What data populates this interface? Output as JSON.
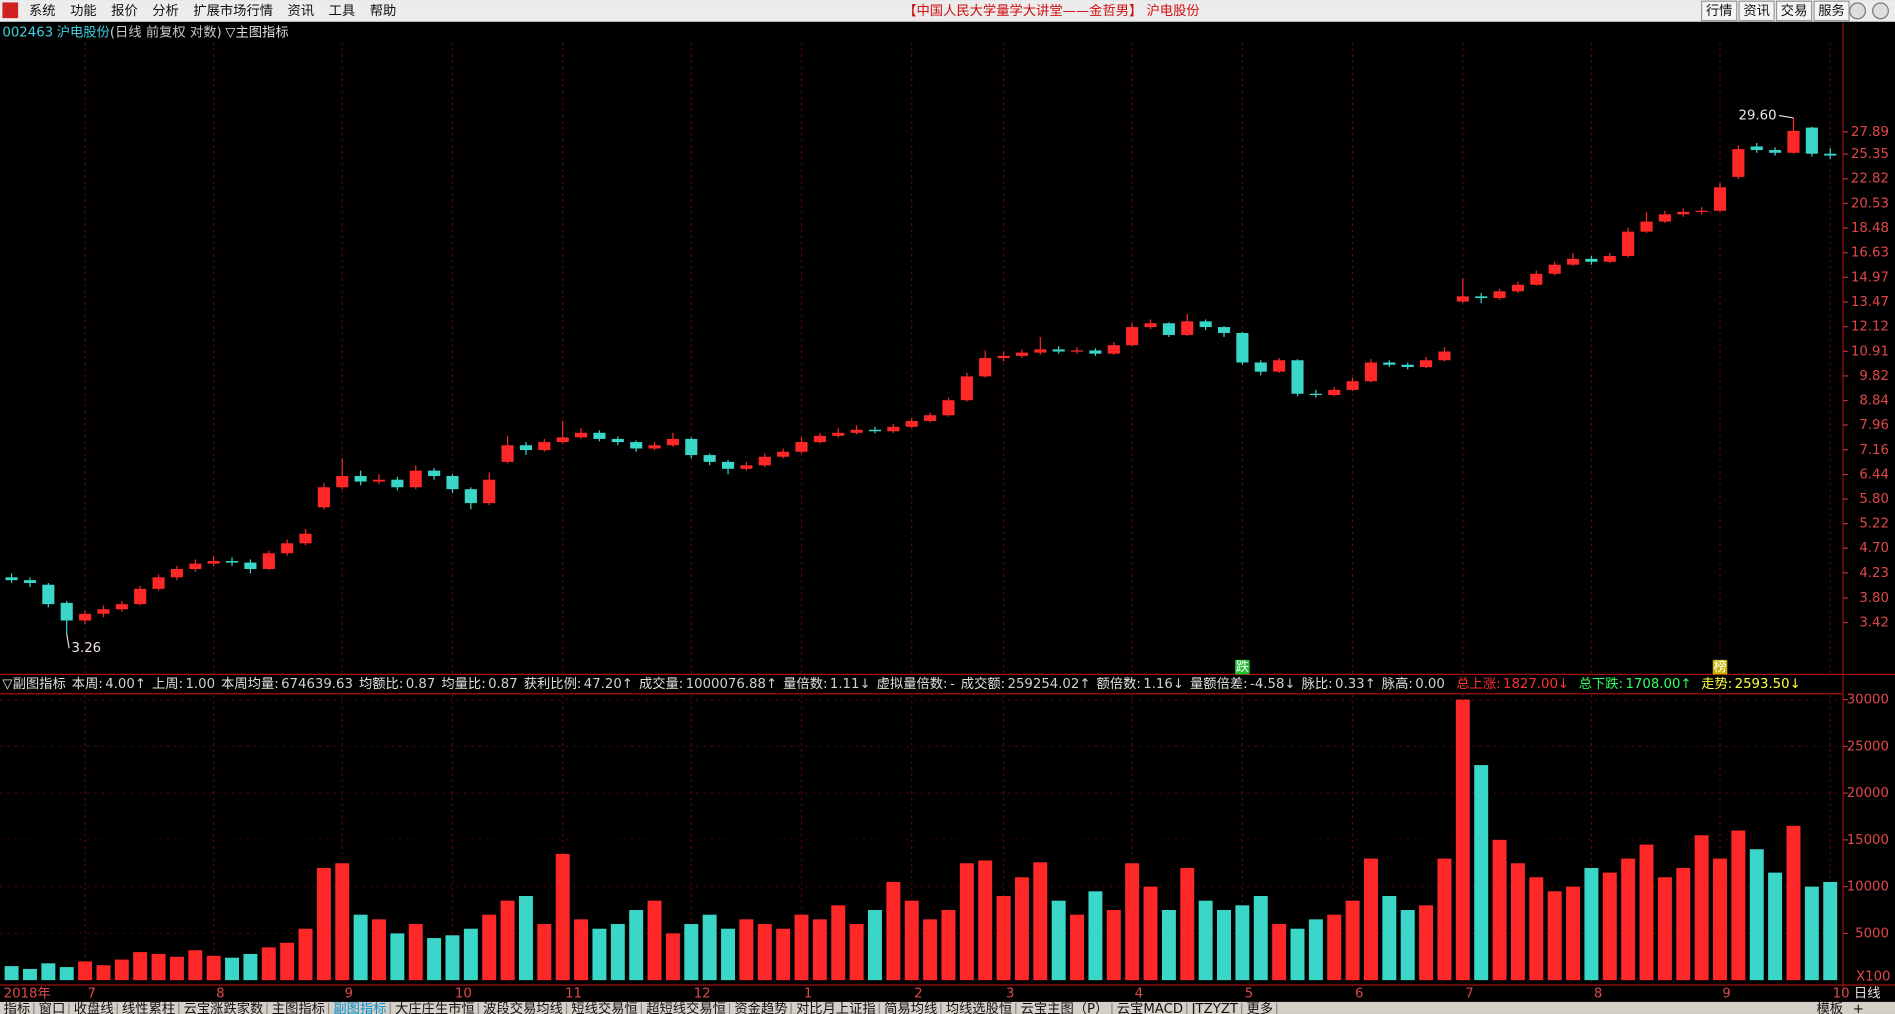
{
  "menu": [
    "系统",
    "功能",
    "报价",
    "分析",
    "扩展市场行情",
    "资讯",
    "工具",
    "帮助"
  ],
  "window_title": "【中国人民大学量学大讲堂——金哲男】 沪电股份",
  "top_buttons": [
    "行情",
    "资讯",
    "交易",
    "服务"
  ],
  "stock_code": "002463",
  "stock_name": "沪电股份",
  "chart_mode": "(日线 前复权 对数)",
  "main_indicator": "▽主图指标",
  "sub_header": {
    "title": "▽副图指标",
    "stats": [
      {
        "label": "本周:",
        "value": "4.00↑"
      },
      {
        "label": "上周:",
        "value": "1.00"
      },
      {
        "label": "本周均量:",
        "value": "674639.63"
      },
      {
        "label": "均额比:",
        "value": "0.87"
      },
      {
        "label": "均量比:",
        "value": "0.87"
      },
      {
        "label": "获利比例:",
        "value": "47.20↑"
      },
      {
        "label": "成交量:",
        "value": "1000076.88↑"
      },
      {
        "label": "量倍数:",
        "value": "1.11↓"
      },
      {
        "label": "虚拟量倍数:",
        "value": "-"
      },
      {
        "label": "成交额:",
        "value": "259254.02↑"
      },
      {
        "label": "额倍数:",
        "value": "1.16↓"
      },
      {
        "label": "量额倍差:",
        "value": "-4.58↓"
      },
      {
        "label": "脉比:",
        "value": "0.33↑"
      },
      {
        "label": "脉高:",
        "value": "0.00"
      }
    ],
    "right_stats": [
      {
        "label": "总上涨:",
        "value": "1827.00↓",
        "color": "#ff3030"
      },
      {
        "label": "总下跌:",
        "value": "1708.00↑",
        "color": "#30ff60"
      },
      {
        "label": "走势:",
        "value": "2593.50↓",
        "color": "#ffff40"
      }
    ]
  },
  "period": "日线",
  "tabs": [
    "指标",
    "窗口",
    "收盘线",
    "线性累柱",
    "云宝涨跌家数",
    "主图指标",
    "副图指标",
    "大庄庄生市恒",
    "波段交易均线",
    "短线交易恒",
    "超短线交易恒",
    "资金趋势",
    "对比月上证指",
    "简易均线",
    "均线选股恒",
    "云宝主图（P）",
    "云宝MACD",
    "JTZYZT",
    "更多"
  ],
  "active_tab": 6,
  "tabs_right": [
    "模板",
    "+"
  ],
  "chart_data": [
    {
      "type": "candlestick",
      "log_scale": true,
      "grid": "x",
      "up_color": "#ff2828",
      "down_color": "#3ad6c8",
      "xlim": [
        -0.5,
        99.5
      ],
      "xticks": [
        {
          "value": 0,
          "label": "2018年"
        },
        {
          "value": 4,
          "label": "7"
        },
        {
          "value": 11,
          "label": "8"
        },
        {
          "value": 18,
          "label": "9"
        },
        {
          "value": 24,
          "label": "10"
        },
        {
          "value": 30,
          "label": "11"
        },
        {
          "value": 37,
          "label": "12"
        },
        {
          "value": 43,
          "label": "1"
        },
        {
          "value": 49,
          "label": "2"
        },
        {
          "value": 54,
          "label": "3"
        },
        {
          "value": 61,
          "label": "4"
        },
        {
          "value": 67,
          "label": "5"
        },
        {
          "value": 73,
          "label": "6"
        },
        {
          "value": 79,
          "label": "7"
        },
        {
          "value": 86,
          "label": "8"
        },
        {
          "value": 93,
          "label": "9"
        },
        {
          "value": 99,
          "label": "10"
        }
      ],
      "ylim": [
        2.74,
        40.9
      ],
      "yticks": [
        27.89,
        25.35,
        22.82,
        20.53,
        18.48,
        16.63,
        14.97,
        13.47,
        12.12,
        10.91,
        9.82,
        8.84,
        7.96,
        7.16,
        6.44,
        {
          "value": 5.8,
          "label": "5.80"
        },
        5.22,
        {
          "value": 4.7,
          "label": "4.70"
        },
        4.23,
        {
          "value": 3.8,
          "label": "3.80"
        },
        3.42
      ],
      "open": [
        4.15,
        4.1,
        4.02,
        3.72,
        3.45,
        3.55,
        3.62,
        3.7,
        3.95,
        4.15,
        4.3,
        4.4,
        4.45,
        4.42,
        4.3,
        4.6,
        4.8,
        5.6,
        6.1,
        6.4,
        6.25,
        6.3,
        6.1,
        6.55,
        6.4,
        6.05,
        5.7,
        6.8,
        7.3,
        7.15,
        7.4,
        7.55,
        7.7,
        7.5,
        7.4,
        7.2,
        7.3,
        7.5,
        7.0,
        6.8,
        6.6,
        6.7,
        6.95,
        7.1,
        7.4,
        7.6,
        7.7,
        7.8,
        7.75,
        7.9,
        8.1,
        8.3,
        8.85,
        9.8,
        10.6,
        10.7,
        10.85,
        11.0,
        10.9,
        10.95,
        10.8,
        11.2,
        12.1,
        12.3,
        11.7,
        12.4,
        12.1,
        11.8,
        10.4,
        10.0,
        10.5,
        9.1,
        9.05,
        9.25,
        9.6,
        10.4,
        10.3,
        10.2,
        10.5,
        13.5,
        13.8,
        13.7,
        14.1,
        14.5,
        15.2,
        15.8,
        16.2,
        16.0,
        16.4,
        18.2,
        19.0,
        19.6,
        19.8,
        19.9,
        23.0,
        26.2,
        25.8,
        25.5,
        28.4,
        25.4
      ],
      "high": [
        4.22,
        4.15,
        4.05,
        3.75,
        3.6,
        3.68,
        3.75,
        4.0,
        4.2,
        4.36,
        4.48,
        4.55,
        4.52,
        4.48,
        4.65,
        4.88,
        5.1,
        6.2,
        6.9,
        6.55,
        6.45,
        6.38,
        6.7,
        6.62,
        6.45,
        6.1,
        6.5,
        7.6,
        7.4,
        7.5,
        8.1,
        7.85,
        7.78,
        7.58,
        7.45,
        7.4,
        7.7,
        7.55,
        7.05,
        6.85,
        6.8,
        7.05,
        7.2,
        7.55,
        7.7,
        7.85,
        7.95,
        7.9,
        8.0,
        8.2,
        8.4,
        8.95,
        9.95,
        10.95,
        10.9,
        11.0,
        11.6,
        11.15,
        11.1,
        11.05,
        11.35,
        12.3,
        12.5,
        12.35,
        12.8,
        12.5,
        12.15,
        11.85,
        10.5,
        10.6,
        10.55,
        9.25,
        9.35,
        9.75,
        10.55,
        10.5,
        10.4,
        10.65,
        11.1,
        14.9,
        14.0,
        14.25,
        14.7,
        15.4,
        16.0,
        16.6,
        16.4,
        16.6,
        18.5,
        19.8,
        19.9,
        20.1,
        20.2,
        22.4,
        26.3,
        26.6,
        26.1,
        29.6,
        28.5,
        26.0
      ],
      "low": [
        4.05,
        3.98,
        3.65,
        3.26,
        3.4,
        3.5,
        3.58,
        3.68,
        3.92,
        4.1,
        4.25,
        4.35,
        4.36,
        4.22,
        4.28,
        4.55,
        4.76,
        5.55,
        6.05,
        6.15,
        6.18,
        6.02,
        6.05,
        6.3,
        5.95,
        5.55,
        5.65,
        6.75,
        7.0,
        7.1,
        7.35,
        7.5,
        7.42,
        7.3,
        7.1,
        7.15,
        7.25,
        6.9,
        6.7,
        6.45,
        6.55,
        6.65,
        6.9,
        7.05,
        7.35,
        7.55,
        7.65,
        7.68,
        7.7,
        7.85,
        8.05,
        8.25,
        8.8,
        9.75,
        10.45,
        10.6,
        10.75,
        10.8,
        10.8,
        10.7,
        10.75,
        11.15,
        12.0,
        11.6,
        11.65,
        11.95,
        11.6,
        10.3,
        9.85,
        9.95,
        9.0,
        8.95,
        9.0,
        9.2,
        9.55,
        10.2,
        10.1,
        10.15,
        10.45,
        13.4,
        13.4,
        13.6,
        14.0,
        14.45,
        15.1,
        15.7,
        15.8,
        15.9,
        16.3,
        18.1,
        18.9,
        19.4,
        19.6,
        19.8,
        22.8,
        25.5,
        25.2,
        25.4,
        25.1,
        24.8
      ],
      "close": [
        4.1,
        4.05,
        3.7,
        3.45,
        3.55,
        3.62,
        3.7,
        3.95,
        4.15,
        4.3,
        4.4,
        4.45,
        4.42,
        4.3,
        4.6,
        4.8,
        5.0,
        6.1,
        6.4,
        6.25,
        6.3,
        6.1,
        6.55,
        6.4,
        6.05,
        5.7,
        6.3,
        7.3,
        7.15,
        7.4,
        7.55,
        7.7,
        7.5,
        7.4,
        7.2,
        7.3,
        7.5,
        7.0,
        6.8,
        6.6,
        6.7,
        6.95,
        7.1,
        7.4,
        7.6,
        7.7,
        7.8,
        7.75,
        7.9,
        8.1,
        8.3,
        8.85,
        9.8,
        10.6,
        10.7,
        10.85,
        11.0,
        10.9,
        10.95,
        10.8,
        11.2,
        12.1,
        12.3,
        11.7,
        12.4,
        12.1,
        11.8,
        10.4,
        10.0,
        10.5,
        9.1,
        9.05,
        9.25,
        9.6,
        10.4,
        10.3,
        10.2,
        10.5,
        10.9,
        13.8,
        13.7,
        14.1,
        14.5,
        15.2,
        15.8,
        16.2,
        16.0,
        16.4,
        18.2,
        19.0,
        19.6,
        19.8,
        19.9,
        22.0,
        25.9,
        25.8,
        25.5,
        28.0,
        25.4,
        25.2
      ],
      "annotations": [
        {
          "label": "29.60",
          "x": 97,
          "y": 29.6
        },
        {
          "label": "3.26",
          "x": 3,
          "y": 3.26
        }
      ],
      "signals": [
        {
          "label": "跌",
          "x": 67,
          "color": "#1fbf2f"
        },
        {
          "label": "榜",
          "x": 93,
          "color": "#c8b400"
        }
      ]
    },
    {
      "type": "bar",
      "yunit": "X100",
      "ylim": [
        0,
        30500
      ],
      "yticks": [
        30000,
        25000,
        20000,
        15000,
        10000,
        5000
      ],
      "values": [
        1500,
        1200,
        1800,
        1400,
        2000,
        1600,
        2200,
        3000,
        2800,
        2500,
        3200,
        2600,
        2400,
        2800,
        3500,
        4000,
        5500,
        12000,
        12500,
        7000,
        6500,
        5000,
        6000,
        4500,
        4800,
        5500,
        7000,
        8500,
        9000,
        6000,
        13500,
        6500,
        5500,
        6000,
        7500,
        8500,
        5000,
        6000,
        7000,
        5500,
        6500,
        6000,
        5500,
        7000,
        6500,
        8000,
        6000,
        7500,
        10500,
        8500,
        6500,
        7500,
        12500,
        12800,
        9000,
        11000,
        12600,
        8500,
        7000,
        9500,
        7500,
        12500,
        10000,
        7500,
        12000,
        8500,
        7500,
        8000,
        9000,
        6000,
        5500,
        6500,
        7000,
        8500,
        13000,
        9000,
        7500,
        8000,
        13000,
        30000,
        23000,
        15000,
        12500,
        11000,
        9500,
        10000,
        12000,
        11500,
        13000,
        14500,
        11000,
        12000,
        15500,
        13000,
        16000,
        14000,
        11500,
        16500,
        10000,
        10500
      ]
    }
  ]
}
